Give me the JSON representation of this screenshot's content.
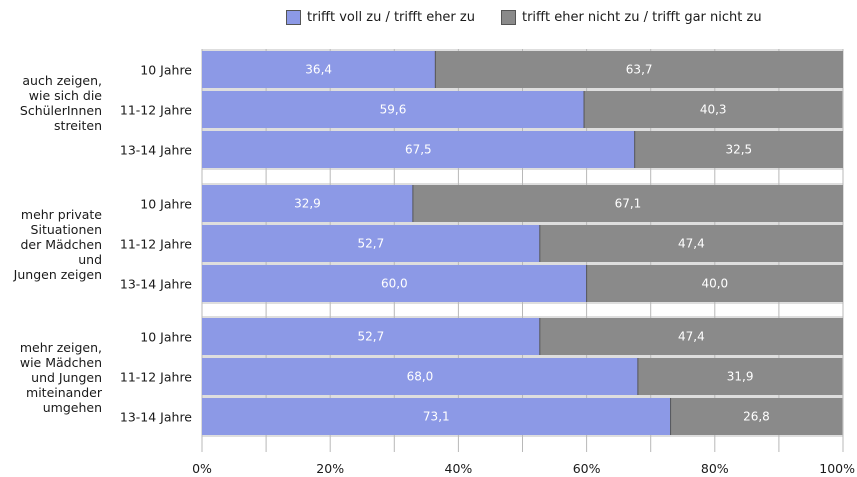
{
  "legend": {
    "agree_label": "trifft voll zu / trifft eher zu",
    "disagree_label": "trifft eher nicht zu / trifft gar nicht zu"
  },
  "colors": {
    "agree": "#8c99e6",
    "disagree": "#8a8a8a",
    "panel": "#dedede",
    "grid": "#b8b8b8"
  },
  "chart_data": {
    "type": "bar",
    "orientation": "horizontal",
    "stacked": true,
    "xlim": [
      0,
      100
    ],
    "x_ticks": [
      "0%",
      "20%",
      "40%",
      "60%",
      "80%",
      "100%"
    ],
    "series_names": [
      "trifft voll zu / trifft eher zu",
      "trifft eher nicht zu / trifft gar nicht zu"
    ],
    "groups": [
      {
        "label_lines": [
          "auch zeigen,",
          "wie sich die",
          "SchülerInnen",
          "streiten"
        ],
        "rows": [
          {
            "category": "10 Jahre",
            "values": [
              36.4,
              63.7
            ],
            "labels": [
              "36,4",
              "63,7"
            ]
          },
          {
            "category": "11-12 Jahre",
            "values": [
              59.6,
              40.3
            ],
            "labels": [
              "59,6",
              "40,3"
            ]
          },
          {
            "category": "13-14 Jahre",
            "values": [
              67.5,
              32.5
            ],
            "labels": [
              "67,5",
              "32,5"
            ]
          }
        ]
      },
      {
        "label_lines": [
          "mehr private",
          "Situationen",
          "der Mädchen",
          "und",
          "Jungen zeigen"
        ],
        "rows": [
          {
            "category": "10 Jahre",
            "values": [
              32.9,
              67.1
            ],
            "labels": [
              "32,9",
              "67,1"
            ]
          },
          {
            "category": "11-12 Jahre",
            "values": [
              52.7,
              47.4
            ],
            "labels": [
              "52,7",
              "47,4"
            ]
          },
          {
            "category": "13-14 Jahre",
            "values": [
              60.0,
              40.0
            ],
            "labels": [
              "60,0",
              "40,0"
            ]
          }
        ]
      },
      {
        "label_lines": [
          "mehr zeigen,",
          "wie Mädchen",
          "und Jungen",
          "miteinander",
          "umgehen"
        ],
        "rows": [
          {
            "category": "10 Jahre",
            "values": [
              52.7,
              47.4
            ],
            "labels": [
              "52,7",
              "47,4"
            ]
          },
          {
            "category": "11-12 Jahre",
            "values": [
              68.0,
              31.9
            ],
            "labels": [
              "68,0",
              "31,9"
            ]
          },
          {
            "category": "13-14 Jahre",
            "values": [
              73.1,
              26.8
            ],
            "labels": [
              "73,1",
              "26,8"
            ]
          }
        ]
      }
    ]
  }
}
